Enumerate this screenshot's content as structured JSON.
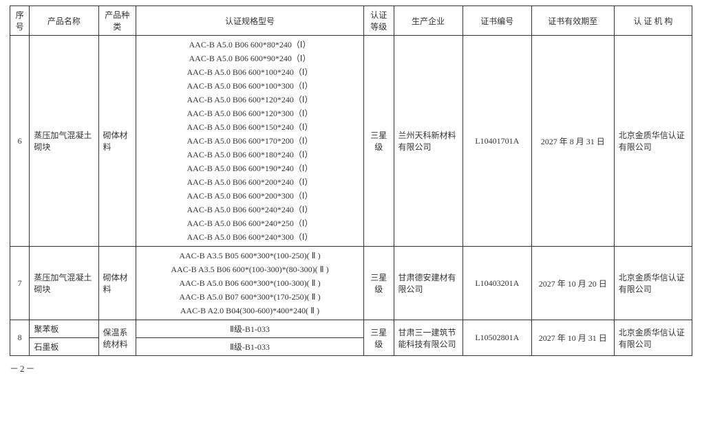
{
  "headers": {
    "seq": "序号",
    "name": "产品名称",
    "cat": "产品种类",
    "spec": "认证规格型号",
    "level": "认证等级",
    "company": "生产企业",
    "certno": "证书编号",
    "expiry": "证书有效期至",
    "agency": "认 证 机 构"
  },
  "rows": [
    {
      "seq": "6",
      "name": "蒸压加气混凝土砌块",
      "cat": "砌体材料",
      "specs": [
        "AAC-B A5.0 B06 600*80*240（Ⅰ）",
        "AAC-B A5.0 B06 600*90*240（Ⅰ）",
        "AAC-B A5.0 B06 600*100*240（Ⅰ）",
        "AAC-B A5.0 B06 600*100*300（Ⅰ）",
        "AAC-B A5.0 B06 600*120*240（Ⅰ）",
        "AAC-B A5.0 B06 600*120*300（Ⅰ）",
        "AAC-B A5.0 B06 600*150*240（Ⅰ）",
        "AAC-B A5.0 B06 600*170*200（Ⅰ）",
        "AAC-B A5.0 B06 600*180*240（Ⅰ）",
        "AAC-B A5.0 B06 600*190*240（Ⅰ）",
        "AAC-B A5.0 B06 600*200*240（Ⅰ）",
        "AAC-B A5.0 B06 600*200*300（Ⅰ）",
        "AAC-B A5.0 B06 600*240*240（Ⅰ）",
        "AAC-B A5.0 B06 600*240*250（Ⅰ）",
        "AAC-B A5.0 B06 600*240*300（Ⅰ）"
      ],
      "level": "三星级",
      "company": "兰州天科新材料有限公司",
      "certno": "L10401701A",
      "expiry": "2027 年 8 月 31 日",
      "agency": "北京金质华信认证有限公司"
    },
    {
      "seq": "7",
      "name": "蒸压加气混凝土砌块",
      "cat": "砌体材料",
      "specs": [
        "AAC-B A3.5 B05 600*300*(100-250)( Ⅱ )",
        "AAC-B A3.5 B06 600*(100-300)*(80-300)( Ⅱ )",
        "AAC-B A5.0 B06 600*300*(100-300)( Ⅱ )",
        "AAC-B A5.0 B07 600*300*(170-250)( Ⅱ )",
        "AAC-B A2.0 B04(300-600)*400*240( Ⅱ )"
      ],
      "level": "三星级",
      "company": "甘肃德安建材有限公司",
      "certno": "L10403201A",
      "expiry": "2027 年 10 月 20 日",
      "agency": "北京金质华信认证有限公司"
    },
    {
      "seq": "8",
      "sub": [
        {
          "name": "聚苯板",
          "spec": "Ⅱ级-B1-033"
        },
        {
          "name": "石墨板",
          "spec": "Ⅱ级-B1-033"
        }
      ],
      "cat": "保温系统材料",
      "level": "三星级",
      "company": "甘肃三一建筑节能科技有限公司",
      "certno": "L10502801A",
      "expiry": "2027 年 10 月 31 日",
      "agency": "北京金质华信认证有限公司"
    }
  ],
  "page": "－2－"
}
